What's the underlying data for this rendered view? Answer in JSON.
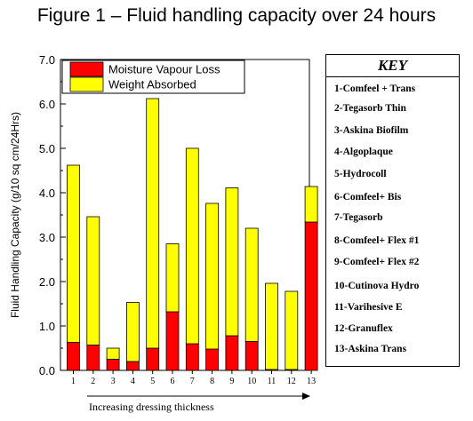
{
  "chart_data": {
    "type": "bar",
    "stacked": true,
    "title": "Figure 1 – Fluid handling capacity over 24 hours",
    "ylabel": "Fluid Handling Capacity (g/10 sq cm/24Hrs)",
    "xlabel": "Increasing dressing thickness",
    "ylim": [
      0,
      7
    ],
    "yticks": [
      "0.0",
      "1.0",
      "2.0",
      "3.0",
      "4.0",
      "5.0",
      "6.0",
      "7.0"
    ],
    "categories": [
      "1",
      "2",
      "3",
      "4",
      "5",
      "6",
      "7",
      "8",
      "9",
      "10",
      "11",
      "12",
      "13"
    ],
    "series": [
      {
        "name": "Moisture Vapour Loss",
        "color": "#ff0000",
        "values": [
          0.63,
          0.57,
          0.25,
          0.2,
          0.5,
          1.32,
          0.6,
          0.48,
          0.78,
          0.65,
          0.02,
          0.02,
          3.34
        ]
      },
      {
        "name": "Weight  Absorbed",
        "color": "#ffff00",
        "values": [
          3.99,
          2.89,
          0.25,
          1.33,
          5.62,
          1.53,
          4.4,
          3.28,
          3.33,
          2.55,
          1.94,
          1.76,
          0.8
        ]
      }
    ],
    "legend": "top-left"
  },
  "key": {
    "title": "KEY",
    "items": [
      "1-Comfeel + Trans",
      "2-Tegasorb Thin",
      "3-Askina Biofilm",
      "4-Algoplaque",
      "5-Hydrocoll",
      "6-Comfeel+ Bis",
      "7-Tegasorb",
      "8-Comfeel+ Flex #1",
      "9-Comfeel+ Flex #2",
      "10-Cutinova Hydro",
      "11-Varihesive E",
      "12-Granuflex",
      "13-Askina Trans"
    ]
  }
}
